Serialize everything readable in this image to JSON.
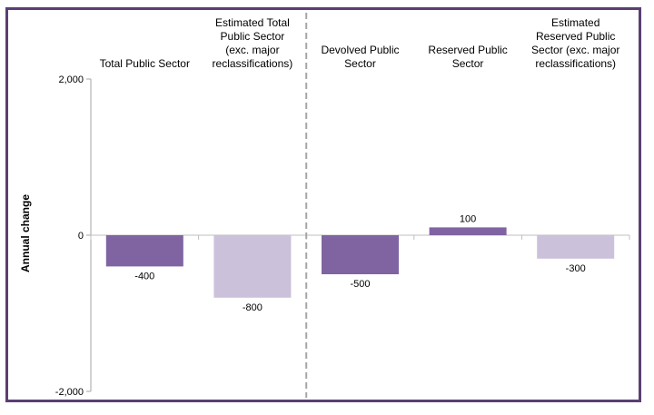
{
  "chart_data": {
    "type": "bar",
    "categories": [
      [
        "Total Public Sector"
      ],
      [
        "Estimated Total",
        "Public Sector",
        "(exc. major",
        "reclassifications)"
      ],
      [
        "Devolved Public",
        "Sector"
      ],
      [
        "Reserved Public",
        "Sector"
      ],
      [
        "Estimated",
        "Reserved Public",
        "Sector (exc. major",
        "reclassifications)"
      ]
    ],
    "values": [
      -400,
      -800,
      -500,
      100,
      -300
    ],
    "data_labels": [
      "-400",
      "-800",
      "-500",
      "100",
      "-300"
    ],
    "bar_colors": [
      "#8064a2",
      "#ccc1da",
      "#8064a2",
      "#8064a2",
      "#ccc1da"
    ],
    "ylabel": "Annual change",
    "ylim": [
      -2000,
      2000
    ],
    "yticks": [
      2000,
      0,
      -2000
    ],
    "ytick_labels": [
      "2,000",
      "0",
      "-2,000"
    ],
    "grid": false,
    "separator_after_category": 2,
    "frame_color": "#5a3f73",
    "separator_color": "#a6a6a6"
  }
}
